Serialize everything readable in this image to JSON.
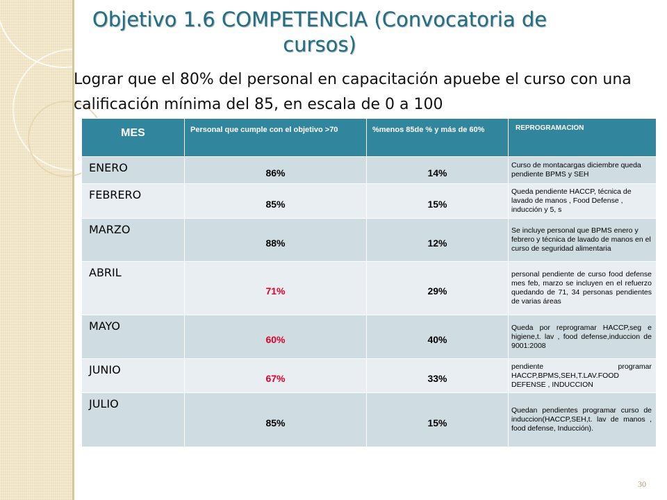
{
  "title": "Objetivo 1.6 COMPETENCIA (Convocatoria de cursos)",
  "subtitle": "Lograr que el 80% del personal en capacitación apuebe el curso con una calificación mínima del 85, en escala de 0 a 100",
  "table": {
    "headers": {
      "mes": "MES",
      "cumple": "Personal que cumple con el objetivo >70",
      "menos": "%menos 85de % y más de 60%",
      "reprogramacion": "REPROGRAMACION"
    },
    "rows": [
      {
        "mes": "ENERO",
        "cumple": "86%",
        "menos": "14%",
        "nota": "Curso de montacargas diciembre queda pendiente BPMS y SEH",
        "red": false
      },
      {
        "mes": "FEBRERO",
        "cumple": "85%",
        "menos": "15%",
        "nota": "Queda pendiente HACCP, técnica de lavado de manos , Food Defense , inducción y 5, s",
        "red": false
      },
      {
        "mes": "MARZO",
        "cumple": "88%",
        "menos": "12%",
        "nota": "Se incluye personal que BPMS enero y febrero y técnica de lavado de manos en el curso de seguridad alimentaria",
        "red": false
      },
      {
        "mes": "ABRIL",
        "cumple": "71%",
        "menos": "29%",
        "nota": "personal pendiente de curso food defense mes feb, marzo se incluyen en el refuerzo quedando de 71, 34 personas pendientes de varias áreas",
        "red": true
      },
      {
        "mes": "MAYO",
        "cumple": "60%",
        "menos": "40%",
        "nota": "Queda por reprogramar HACCP,seg e higiene,t. lav , food defense,induccion de 9001:2008",
        "red": true
      },
      {
        "mes": "JUNIO",
        "cumple": "67%",
        "menos": "33%",
        "nota": "pendiente programar HACCP,BPMS,SEH,T.LAV.FOOD DEFENSE , INDUCCION",
        "red": true
      },
      {
        "mes": "JULIO",
        "cumple": "85%",
        "menos": "15%",
        "nota": "Quedan pendientes programar curso de induccion(HACCP,SEH,t. lav de manos , food defense, Inducción).",
        "red": false
      }
    ]
  },
  "page_number": "30",
  "colors": {
    "title": "#1f6f86",
    "header_bg": "#31859c",
    "row_dark": "#cfdde3",
    "row_light": "#e8eef2",
    "highlight_red": "#e0002a",
    "strip": "#f2e6c8"
  }
}
